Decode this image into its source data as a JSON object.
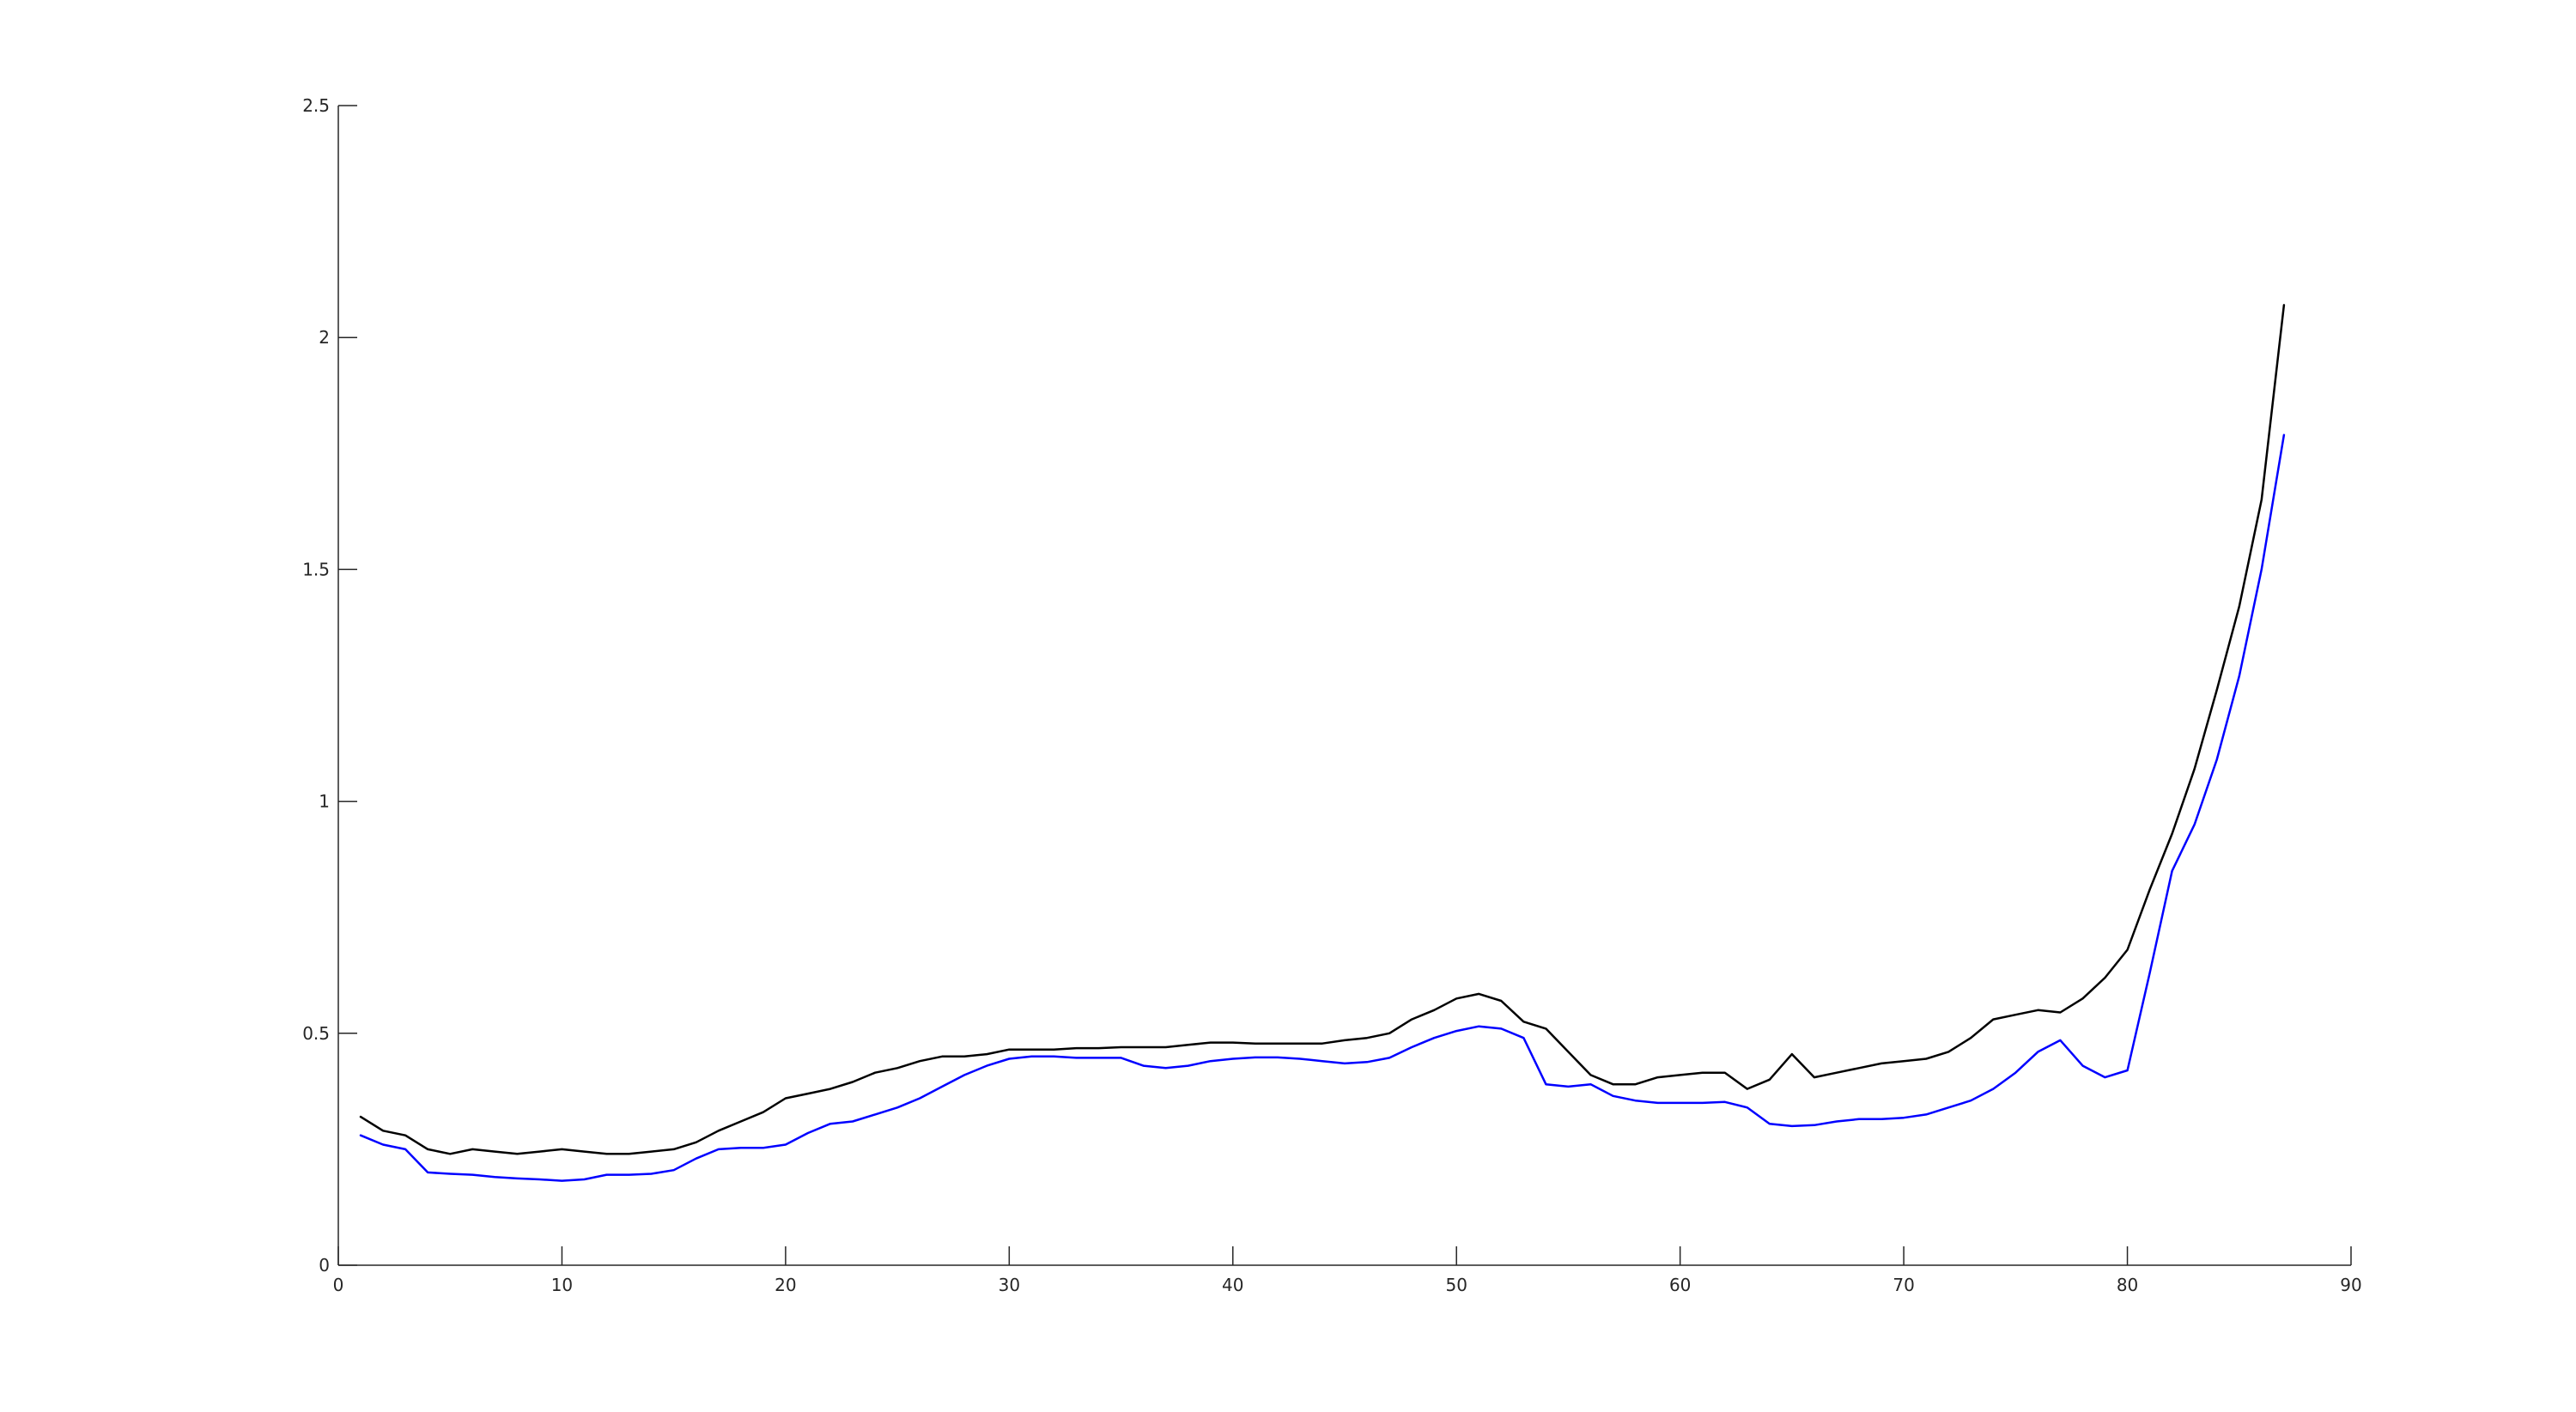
{
  "chart_data": {
    "type": "line",
    "title": "",
    "xlabel": "",
    "ylabel": "",
    "xlim": [
      0,
      90
    ],
    "ylim": [
      0,
      2.5
    ],
    "grid": false,
    "x_ticks": [
      0,
      10,
      20,
      30,
      40,
      50,
      60,
      70,
      80,
      90
    ],
    "x_tick_labels": [
      "0",
      "10",
      "20",
      "30",
      "40",
      "50",
      "60",
      "70",
      "80",
      "90"
    ],
    "y_ticks": [
      0,
      0.5,
      1,
      1.5,
      2,
      2.5
    ],
    "y_tick_labels": [
      "0",
      "0.5",
      "1",
      "1.5",
      "2",
      "2.5"
    ],
    "x": [
      1,
      2,
      3,
      4,
      5,
      6,
      7,
      8,
      9,
      10,
      11,
      12,
      13,
      14,
      15,
      16,
      17,
      18,
      19,
      20,
      21,
      22,
      23,
      24,
      25,
      26,
      27,
      28,
      29,
      30,
      31,
      32,
      33,
      34,
      35,
      36,
      37,
      38,
      39,
      40,
      41,
      42,
      43,
      44,
      45,
      46,
      47,
      48,
      49,
      50,
      51,
      52,
      53,
      54,
      55,
      56,
      57,
      58,
      59,
      60,
      61,
      62,
      63,
      64,
      65,
      66,
      67,
      68,
      69,
      70,
      71,
      72,
      73,
      74,
      75,
      76,
      77,
      78,
      79,
      80,
      81,
      82,
      83,
      84,
      85,
      86,
      87
    ],
    "series": [
      {
        "name": "black series",
        "color": "#000000",
        "values": [
          0.32,
          0.29,
          0.28,
          0.25,
          0.24,
          0.25,
          0.245,
          0.24,
          0.245,
          0.25,
          0.245,
          0.24,
          0.24,
          0.245,
          0.25,
          0.265,
          0.29,
          0.31,
          0.33,
          0.36,
          0.37,
          0.38,
          0.395,
          0.415,
          0.425,
          0.44,
          0.45,
          0.45,
          0.455,
          0.465,
          0.465,
          0.465,
          0.468,
          0.468,
          0.47,
          0.47,
          0.47,
          0.475,
          0.48,
          0.48,
          0.478,
          0.478,
          0.478,
          0.478,
          0.485,
          0.49,
          0.5,
          0.53,
          0.55,
          0.575,
          0.585,
          0.57,
          0.525,
          0.51,
          0.46,
          0.41,
          0.39,
          0.39,
          0.405,
          0.41,
          0.415,
          0.415,
          0.38,
          0.4,
          0.455,
          0.405,
          0.415,
          0.425,
          0.435,
          0.44,
          0.445,
          0.46,
          0.49,
          0.53,
          0.54,
          0.55,
          0.545,
          0.575,
          0.62,
          0.68,
          0.81,
          0.93,
          1.07,
          1.24,
          1.42,
          1.65,
          2.07
        ]
      },
      {
        "name": "blue series",
        "color": "#0000ff",
        "values": [
          0.28,
          0.26,
          0.25,
          0.2,
          0.197,
          0.195,
          0.19,
          0.187,
          0.185,
          0.182,
          0.185,
          0.195,
          0.195,
          0.197,
          0.205,
          0.23,
          0.25,
          0.253,
          0.253,
          0.26,
          0.285,
          0.305,
          0.31,
          0.325,
          0.34,
          0.36,
          0.385,
          0.41,
          0.43,
          0.445,
          0.45,
          0.45,
          0.447,
          0.447,
          0.447,
          0.43,
          0.425,
          0.43,
          0.44,
          0.445,
          0.448,
          0.448,
          0.445,
          0.44,
          0.435,
          0.438,
          0.447,
          0.47,
          0.49,
          0.505,
          0.515,
          0.51,
          0.49,
          0.39,
          0.385,
          0.39,
          0.365,
          0.355,
          0.35,
          0.35,
          0.35,
          0.352,
          0.34,
          0.305,
          0.3,
          0.302,
          0.31,
          0.315,
          0.315,
          0.318,
          0.325,
          0.34,
          0.355,
          0.38,
          0.415,
          0.46,
          0.485,
          0.43,
          0.405,
          0.42,
          0.63,
          0.85,
          0.95,
          1.09,
          1.27,
          1.5,
          1.79
        ]
      }
    ]
  }
}
